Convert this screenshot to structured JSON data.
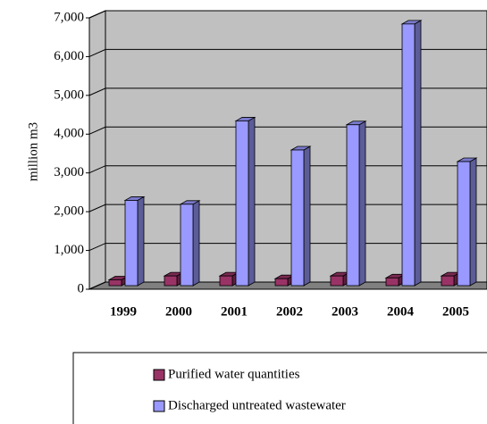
{
  "chart_data": {
    "type": "bar3d",
    "y_label": "million m3",
    "categories": [
      "1999",
      "2000",
      "2001",
      "2002",
      "2003",
      "2004",
      "2005"
    ],
    "series": [
      {
        "name": "Purified water quantities",
        "color": "#993366",
        "values": [
          150,
          250,
          250,
          180,
          250,
          200,
          250
        ]
      },
      {
        "name": "Discharged untreated wastewater",
        "color": "#9999ff",
        "values": [
          2200,
          2100,
          4250,
          3500,
          4150,
          6750,
          3200
        ]
      }
    ],
    "ylim": [
      0,
      7000
    ],
    "yticks": [
      0,
      {
        "value": 1000,
        "label": "1,000"
      },
      {
        "value": 2000,
        "label": "2,000"
      },
      {
        "value": 3000,
        "label": "3,000"
      },
      {
        "value": 4000,
        "label": "4,000"
      },
      {
        "value": 5000,
        "label": "5,000"
      },
      {
        "value": 6000,
        "label": "6,000"
      },
      {
        "value": 7000,
        "label": "7,000"
      }
    ],
    "grid": true
  }
}
